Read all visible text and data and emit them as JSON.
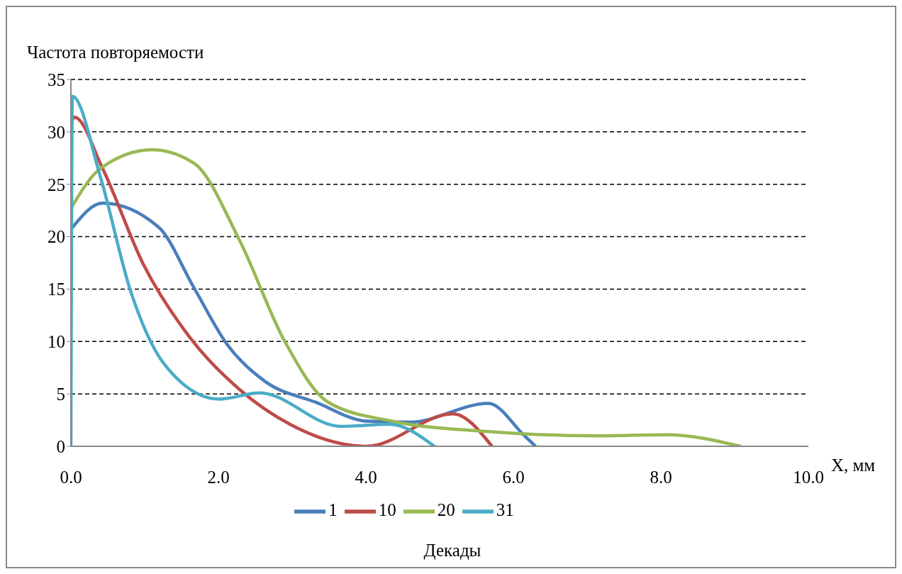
{
  "chart_data": {
    "type": "line",
    "ylabel": "Частота повторяемости",
    "xlabel": "X, мм",
    "legend_title": "Декады",
    "xlim": [
      0,
      10
    ],
    "xticks": [
      {
        "value": 0,
        "label": "0.0"
      },
      {
        "value": 2,
        "label": "2.0"
      },
      {
        "value": 4,
        "label": "4.0"
      },
      {
        "value": 6,
        "label": "6.0"
      },
      {
        "value": 8,
        "label": "8.0"
      },
      {
        "value": 10,
        "label": "10.0"
      }
    ],
    "ylim": [
      0,
      35
    ],
    "yticks": [
      0,
      5,
      10,
      15,
      20,
      25,
      30,
      35
    ],
    "grid": "y",
    "legend": "bottom",
    "marker": "none",
    "line_style": "solid",
    "series": [
      {
        "name": "1",
        "color": "#4a7ebb",
        "x": [
          0,
          0.43,
          1.19,
          1.67,
          2.12,
          2.63,
          3.32,
          4.01,
          4.6,
          5.66,
          6.15,
          6.3
        ],
        "values": [
          20.7,
          23.2,
          20.9,
          15.1,
          9.7,
          6.2,
          4.2,
          2.4,
          2.3,
          4.1,
          1.0,
          0
        ]
      },
      {
        "name": "10",
        "color": "#be4b48",
        "x": [
          0,
          0.05,
          0.43,
          0.98,
          1.6,
          2.29,
          2.97,
          4.01,
          5.18,
          5.71
        ],
        "values": [
          30.7,
          31.4,
          26.5,
          17.4,
          10.5,
          5.4,
          2.1,
          0,
          3.1,
          0
        ]
      },
      {
        "name": "20",
        "color": "#98b954",
        "x": [
          0,
          0.4,
          1.1,
          1.67,
          2.29,
          2.9,
          3.49,
          4.35,
          5.66,
          7.11,
          8.07,
          9.08
        ],
        "values": [
          22.7,
          26.5,
          28.3,
          27.0,
          19.6,
          10.0,
          4.2,
          2.4,
          1.4,
          1.0,
          1.1,
          0
        ]
      },
      {
        "name": "31",
        "color": "#4bacc6",
        "x": [
          0,
          0.02,
          0.4,
          0.81,
          1.26,
          2.01,
          2.56,
          3.66,
          4.32,
          4.93
        ],
        "values": [
          0,
          33.4,
          25.7,
          14.8,
          7.9,
          4.5,
          5.1,
          1.9,
          2.1,
          0
        ]
      }
    ]
  }
}
